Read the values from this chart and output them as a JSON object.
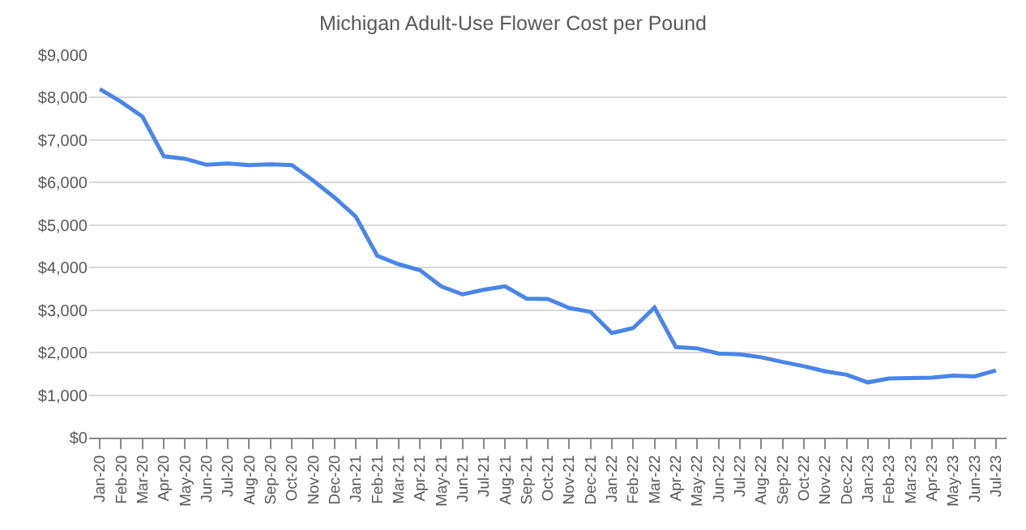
{
  "chart_data": {
    "type": "line",
    "title": "Michigan Adult-Use Flower Cost per Pound",
    "categories": [
      "Jan-20",
      "Feb-20",
      "Mar-20",
      "Apr-20",
      "May-20",
      "Jun-20",
      "Jul-20",
      "Aug-20",
      "Sep-20",
      "Oct-20",
      "Nov-20",
      "Dec-20",
      "Jan-21",
      "Feb-21",
      "Mar-21",
      "Apr-21",
      "May-21",
      "Jun-21",
      "Jul-21",
      "Aug-21",
      "Sep-21",
      "Oct-21",
      "Nov-21",
      "Dec-21",
      "Jan-22",
      "Feb-22",
      "Mar-22",
      "Apr-22",
      "May-22",
      "Jun-22",
      "Jul-22",
      "Aug-22",
      "Sep-22",
      "Oct-22",
      "Nov-22",
      "Dec-22",
      "Jan-23",
      "Feb-23",
      "Mar-23",
      "Apr-23",
      "May-23",
      "Jun-23",
      "Jul-23"
    ],
    "series": [
      {
        "color": "#4a86e8",
        "values": [
          8200,
          7900,
          7550,
          6620,
          6560,
          6420,
          6450,
          6410,
          6430,
          6410,
          6050,
          5650,
          5200,
          4280,
          4080,
          3940,
          3560,
          3370,
          3480,
          3560,
          3270,
          3260,
          3050,
          2960,
          2460,
          2580,
          3060,
          2130,
          2100,
          1980,
          1960,
          1890,
          1780,
          1680,
          1560,
          1480,
          1300,
          1390,
          1400,
          1410,
          1460,
          1440,
          1580
        ]
      }
    ],
    "ylim": [
      0,
      9000
    ],
    "yticks": [
      {
        "value": 0,
        "label": "$0"
      },
      {
        "value": 1000,
        "label": "$1,000"
      },
      {
        "value": 2000,
        "label": "$2,000"
      },
      {
        "value": 3000,
        "label": "$3,000"
      },
      {
        "value": 4000,
        "label": "$4,000"
      },
      {
        "value": 5000,
        "label": "$5,000"
      },
      {
        "value": 6000,
        "label": "$6,000"
      },
      {
        "value": 7000,
        "label": "$7,000"
      },
      {
        "value": 8000,
        "label": "$8,000"
      },
      {
        "value": 9000,
        "label": "$9,000"
      }
    ],
    "grid": "y",
    "marker": "none",
    "line_style": "solid"
  }
}
